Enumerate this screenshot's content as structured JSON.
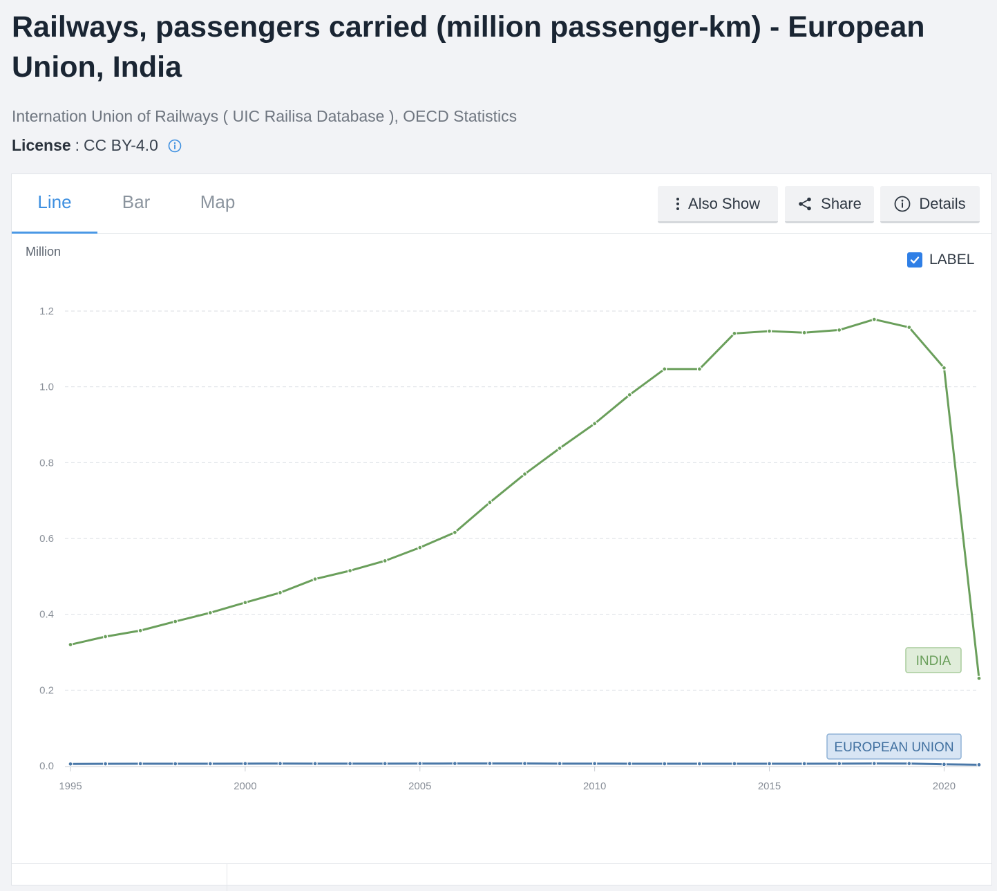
{
  "header": {
    "title": "Railways, passengers carried (million passenger-km) - European Union, India",
    "source": "Internation Union of Railways ( UIC Railisa Database ), OECD Statistics",
    "license_key": "License",
    "license_sep": ":",
    "license_value": "CC BY-4.0"
  },
  "tabs": [
    {
      "label": "Line",
      "active": true
    },
    {
      "label": "Bar",
      "active": false
    },
    {
      "label": "Map",
      "active": false
    }
  ],
  "toolbar": {
    "also_show_label": "Also Show",
    "share_label": "Share",
    "details_label": "Details"
  },
  "chart_controls": {
    "label_toggle_text": "LABEL",
    "label_toggle_checked": true
  },
  "icons": {
    "license_info": "info-circle-icon",
    "also_show": "vertical-dots-icon",
    "share": "share-icon",
    "details": "info-circle-icon",
    "checkbox": "checkmark-icon"
  },
  "chart_data": {
    "type": "line",
    "title": "",
    "xlabel": "",
    "ylabel": "Million",
    "x": [
      1995,
      1996,
      1997,
      1998,
      1999,
      2000,
      2001,
      2002,
      2003,
      2004,
      2005,
      2006,
      2007,
      2008,
      2009,
      2010,
      2011,
      2012,
      2013,
      2014,
      2015,
      2016,
      2017,
      2018,
      2019,
      2020,
      2021
    ],
    "xlim": [
      1995,
      2021
    ],
    "xticks": [
      1995,
      2000,
      2005,
      2010,
      2015,
      2020
    ],
    "ylim": [
      0,
      1.2
    ],
    "yticks": [
      0.0,
      0.2,
      0.4,
      0.6,
      0.8,
      1.0,
      1.2
    ],
    "ytick_labels": [
      "0.0",
      "0.2",
      "0.4",
      "0.6",
      "0.8",
      "1.0",
      "1.2"
    ],
    "grid": true,
    "series": [
      {
        "name": "INDIA",
        "color": "#6a9f5b",
        "values": [
          0.32,
          0.341,
          0.357,
          0.381,
          0.404,
          0.431,
          0.457,
          0.493,
          0.515,
          0.541,
          0.576,
          0.616,
          0.695,
          0.77,
          0.838,
          0.903,
          0.979,
          1.047,
          1.047,
          1.141,
          1.147,
          1.143,
          1.15,
          1.178,
          1.157,
          1.05,
          0.231
        ]
      },
      {
        "name": "EUROPEAN UNION",
        "color": "#4a78a8",
        "values": [
          0.005,
          0.0055,
          0.0058,
          0.0056,
          0.0057,
          0.006,
          0.0061,
          0.0059,
          0.0059,
          0.006,
          0.0062,
          0.0063,
          0.0064,
          0.0063,
          0.006,
          0.006,
          0.0058,
          0.0056,
          0.0056,
          0.0058,
          0.0058,
          0.0058,
          0.006,
          0.0063,
          0.0062,
          0.004,
          0.003
        ]
      }
    ],
    "legend": "inline labels at line end"
  }
}
